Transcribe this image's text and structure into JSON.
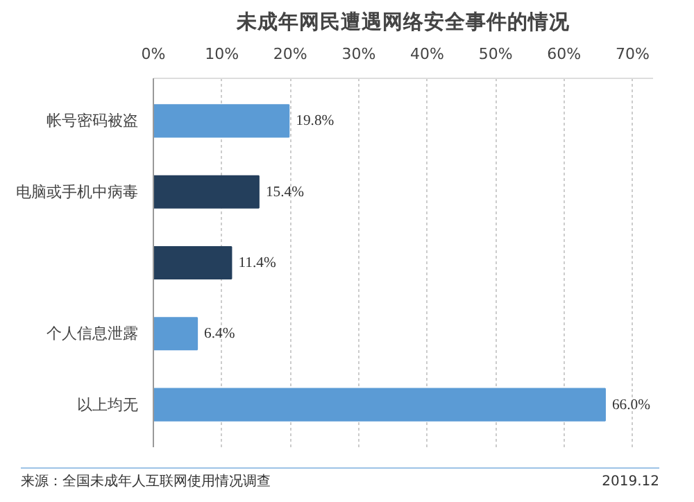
{
  "chart_data": {
    "type": "bar",
    "orientation": "horizontal",
    "title": "未成年网民遭遇网络安全事件的情况",
    "categories": [
      "帐号密码被盗",
      "电脑或手机中病毒",
      null,
      "个人信息泄露",
      "以上均无"
    ],
    "values": [
      19.8,
      15.4,
      11.4,
      6.4,
      66.0
    ],
    "colors": [
      "#5b9bd5",
      "#243f5c",
      "#243f5c",
      "#5b9bd5",
      "#5b9bd5"
    ],
    "value_labels": [
      "19.8%",
      "15.4%",
      "11.4%",
      "6.4%",
      "66.0%"
    ],
    "xlim": [
      0,
      73
    ],
    "xticks": [
      {
        "value": 0,
        "label": "0%"
      },
      {
        "value": 10,
        "label": "10%"
      },
      {
        "value": 20,
        "label": "20%"
      },
      {
        "value": 30,
        "label": "30%"
      },
      {
        "value": 40,
        "label": "40%"
      },
      {
        "value": 50,
        "label": "50%"
      },
      {
        "value": 60,
        "label": "60%"
      },
      {
        "value": 70,
        "label": "70%"
      }
    ],
    "grid": "x",
    "annotations": [
      "来源：全国未成年人互联网使用情况调查",
      "2019.12"
    ]
  }
}
